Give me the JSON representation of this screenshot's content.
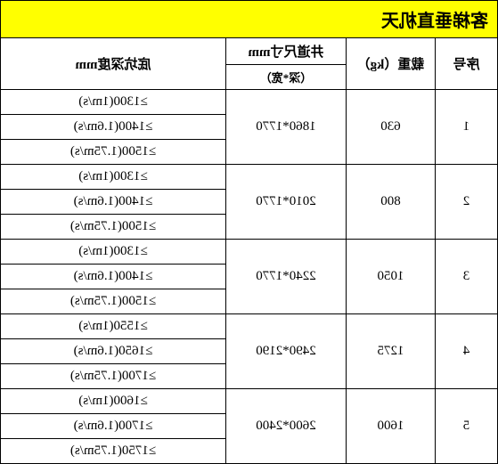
{
  "title": "客梯垂直机天",
  "headers": {
    "seq": "序号",
    "load": "载重（kg）",
    "well_top": "井道尺寸mm",
    "well_sub": "（深*宽）",
    "depth": "底坑深度mm"
  },
  "rows": [
    {
      "seq": "1",
      "load": "630",
      "well": "1860*1770",
      "depths": [
        "≥1300(1m/s)",
        "≥1400(1.6m/s)",
        "≥1500(1.75m/s)"
      ]
    },
    {
      "seq": "2",
      "load": "800",
      "well": "2010*1770",
      "depths": [
        "≥1300(1m/s)",
        "≥1400(1.6m/s)",
        "≥1500(1.75m/s)"
      ]
    },
    {
      "seq": "3",
      "load": "1050",
      "well": "2240*1770",
      "depths": [
        "≥1300(1m/s)",
        "≥1400(1.6m/s)",
        "≥1500(1.75m/s)"
      ]
    },
    {
      "seq": "4",
      "load": "1275",
      "well": "2490*2190",
      "depths": [
        "≥1550(1m/s)",
        "≥1650(1.6m/s)",
        "≥1700(1.75m/s)"
      ]
    },
    {
      "seq": "5",
      "load": "1600",
      "well": "2600*2400",
      "depths": [
        "≥1600(1m/s)",
        "≥1700(1.6m/s)",
        "≥1750(1.75m/s)"
      ]
    }
  ],
  "colors": {
    "title_bg": "#ffff00",
    "border": "#000000",
    "bg": "#ffffff"
  }
}
